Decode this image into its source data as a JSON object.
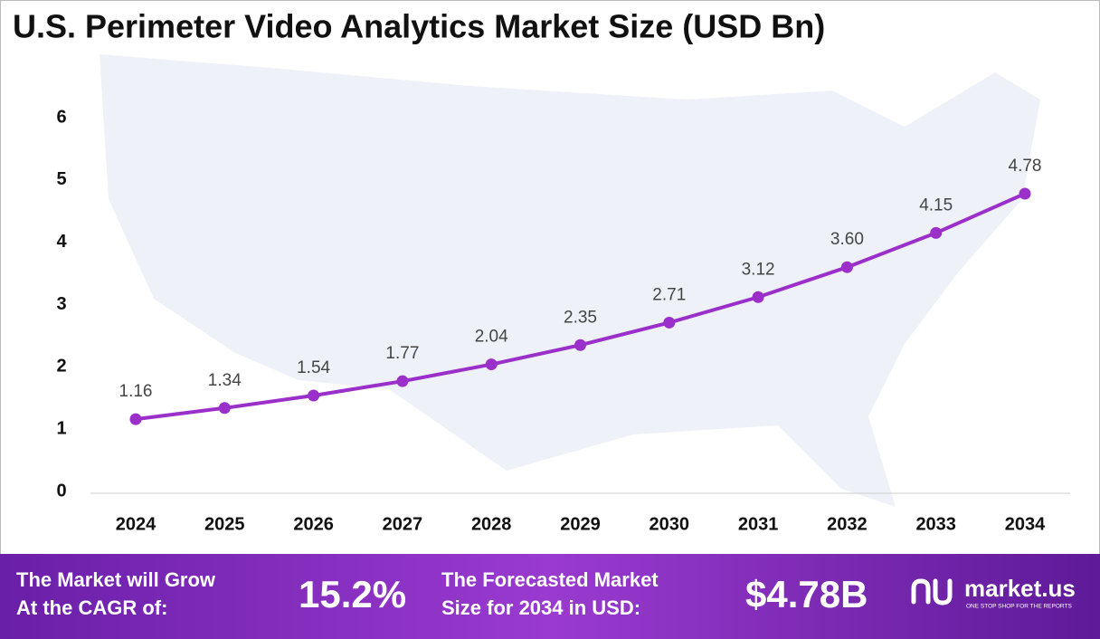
{
  "chart_data": {
    "type": "line",
    "title": "U.S. Perimeter Video Analytics Market Size (USD Bn)",
    "categories": [
      "2024",
      "2025",
      "2026",
      "2027",
      "2028",
      "2029",
      "2030",
      "2031",
      "2032",
      "2033",
      "2034"
    ],
    "series": [
      {
        "name": "Market Size",
        "color": "#9b2fc9",
        "values": [
          1.16,
          1.34,
          1.54,
          1.77,
          2.04,
          2.35,
          2.71,
          3.12,
          3.6,
          4.15,
          4.78
        ],
        "value_labels": [
          "1.16",
          "1.34",
          "1.54",
          "1.77",
          "2.04",
          "2.35",
          "2.71",
          "3.12",
          "3.60",
          "4.15",
          "4.78"
        ]
      }
    ],
    "ylim": [
      0,
      6
    ],
    "yticks": [
      0,
      1,
      2,
      3,
      4,
      5,
      6
    ],
    "grid": false
  },
  "footer": {
    "cagr_label": [
      "The Market will Grow",
      "At the CAGR of:"
    ],
    "cagr": "15.2%",
    "forecast_label": [
      "The Forecasted Market",
      "Size for 2034 in USD:"
    ],
    "forecast": "$4.78B",
    "brand": "market.us",
    "tagline": "ONE STOP SHOP FOR THE REPORTS"
  }
}
